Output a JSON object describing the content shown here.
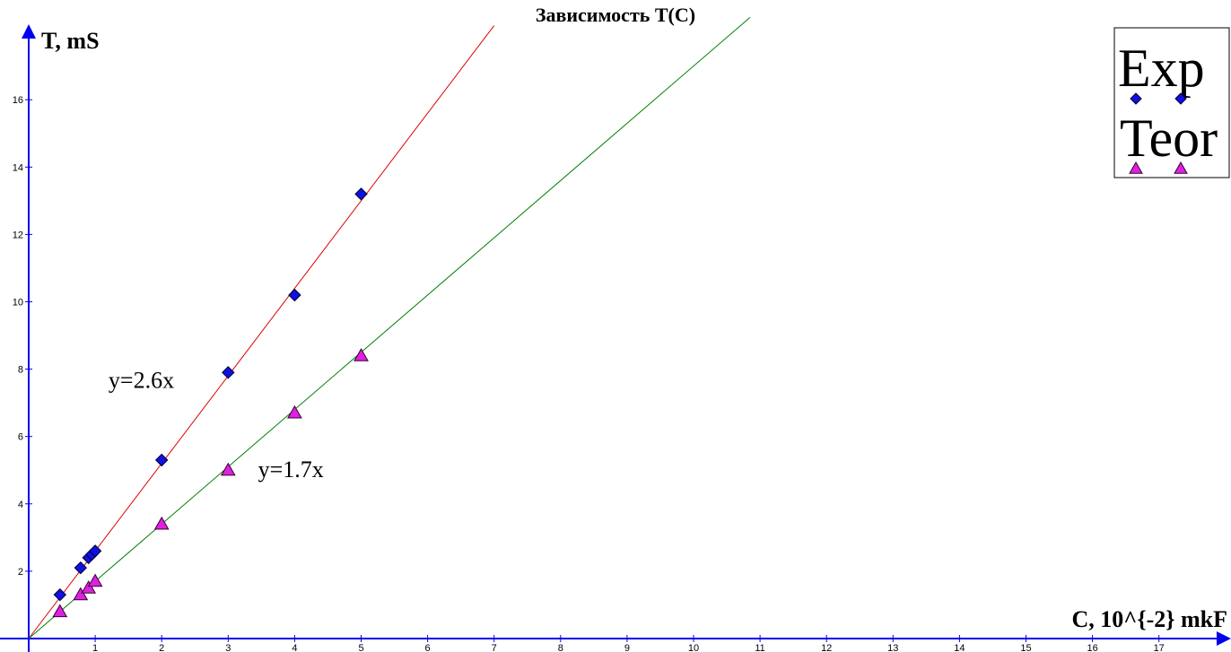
{
  "chart_data": {
    "type": "scatter",
    "title": "Зависимость T(C)",
    "xlabel": "C, 10^{-2}  mkF",
    "ylabel": "T, mS",
    "xlim": [
      0,
      18
    ],
    "ylim": [
      0,
      18
    ],
    "xticks": [
      1,
      2,
      3,
      4,
      5,
      6,
      7,
      8,
      9,
      10,
      11,
      12,
      13,
      14,
      15,
      16,
      17
    ],
    "yticks": [
      2,
      4,
      6,
      8,
      10,
      12,
      14,
      16
    ],
    "grid": false,
    "legend_position": "top-right",
    "series": [
      {
        "name": "Exp",
        "marker": "diamond",
        "color": "#1010e0",
        "x": [
          0.47,
          0.78,
          0.9,
          0.95,
          1.0,
          2.0,
          3.0,
          4.0,
          5.0
        ],
        "y": [
          1.3,
          2.1,
          2.4,
          2.5,
          2.6,
          5.3,
          7.9,
          10.2,
          13.2
        ]
      },
      {
        "name": "Teor",
        "marker": "triangle",
        "color": "#e020e0",
        "x": [
          0.47,
          0.78,
          0.9,
          1.0,
          2.0,
          3.0,
          4.0,
          5.0
        ],
        "y": [
          0.8,
          1.3,
          1.5,
          1.7,
          3.4,
          5.0,
          6.7,
          8.4
        ]
      }
    ],
    "fit_lines": [
      {
        "label": "y=2.6x",
        "slope": 2.6,
        "color": "#e00000",
        "x_end": 7.0
      },
      {
        "label": "y=1.7x",
        "slope": 1.7,
        "color": "#008000",
        "x_end": 10.85
      }
    ],
    "annotations": [
      {
        "text": "y=2.6x",
        "x": 1.2,
        "y": 7.45
      },
      {
        "text": "y=1.7x",
        "x": 3.45,
        "y": 4.8
      }
    ]
  }
}
